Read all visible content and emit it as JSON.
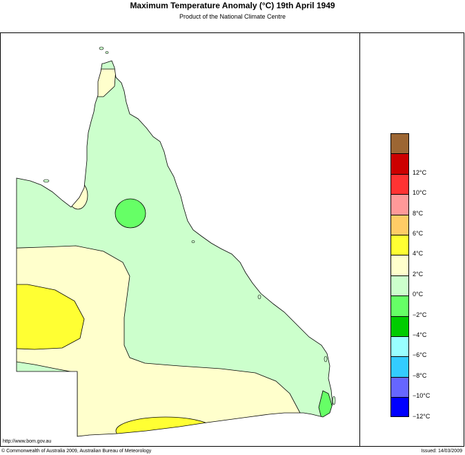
{
  "header": {
    "title": "Maximum Temperature Anomaly (°C)  19th April 1949",
    "subtitle": "Product of the National Climate Centre"
  },
  "legend": {
    "items": [
      {
        "color": "#9c6633",
        "label": ""
      },
      {
        "color": "#cc0000",
        "label": "12°C"
      },
      {
        "color": "#ff3333",
        "label": "10°C"
      },
      {
        "color": "#ff9999",
        "label": "8°C"
      },
      {
        "color": "#ffcc66",
        "label": "6°C"
      },
      {
        "color": "#ffff33",
        "label": "4°C"
      },
      {
        "color": "#ffffcc",
        "label": "2°C"
      },
      {
        "color": "#ccffcc",
        "label": "0°C"
      },
      {
        "color": "#66ff66",
        "label": "−2°C"
      },
      {
        "color": "#00cc00",
        "label": "−4°C"
      },
      {
        "color": "#99ffff",
        "label": "−6°C"
      },
      {
        "color": "#33ccff",
        "label": "−8°C"
      },
      {
        "color": "#6666ff",
        "label": "−10°C"
      },
      {
        "color": "#0000ff",
        "label": "−12°C"
      }
    ]
  },
  "footer": {
    "url": "http://www.bom.gov.au",
    "copyright": "© Commonwealth of Australia 2009, Australian Bureau of Meteorology",
    "issued": "Issued: 14/03/2009"
  }
}
